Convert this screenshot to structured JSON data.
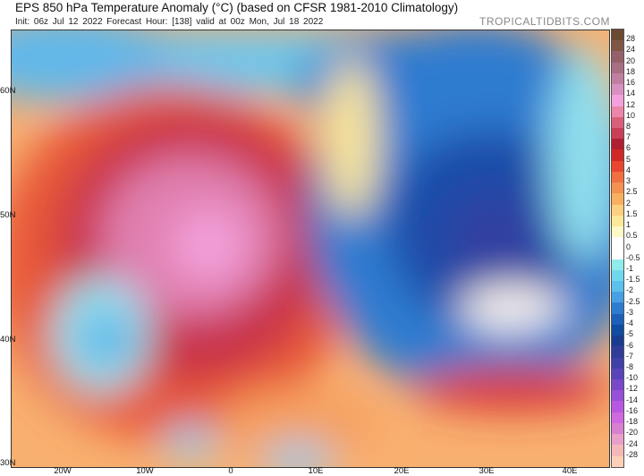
{
  "header": {
    "title": "EPS 850 hPa Temperature Anomaly (°C) (based on CFSR 1981-2010 Climatology)",
    "subtitle": "Init: 06z Jul 12 2022   Forecast Hour: [138]   valid at 00z Mon, Jul 18 2022",
    "brand": "TROPICALTIDBITS.COM"
  },
  "axes": {
    "lat_labels": [
      "60N",
      "50N",
      "40N",
      "30N"
    ],
    "lon_labels": [
      "20W",
      "10W",
      "0",
      "10E",
      "20E",
      "30E",
      "40E"
    ]
  },
  "colorbar": {
    "labels": [
      "28",
      "24",
      "20",
      "18",
      "16",
      "14",
      "12",
      "10",
      "8",
      "7",
      "6",
      "5",
      "4",
      "3",
      "2.5",
      "2",
      "1.5",
      "1",
      "0.5",
      "0",
      "-0.5",
      "-1",
      "-1.5",
      "-2",
      "-2.5",
      "-3",
      "-4",
      "-5",
      "-6",
      "-7",
      "-8",
      "-10",
      "-12",
      "-14",
      "-16",
      "-18",
      "-20",
      "-24",
      "-28"
    ],
    "colors": [
      "#6b4a32",
      "#7f5646",
      "#94606a",
      "#a86e84",
      "#c07ea0",
      "#d890c0",
      "#f4a0dc",
      "#ec86a8",
      "#d8607a",
      "#c84058",
      "#b02030",
      "#d02828",
      "#e84830",
      "#f07040",
      "#f49050",
      "#f8b060",
      "#fcd080",
      "#fce898",
      "#fcf8c8",
      "#ffffff",
      "#ffffff",
      "#90ecec",
      "#70d8ec",
      "#5cc0ec",
      "#48a0e4",
      "#2e7cd0",
      "#1c60b8",
      "#104ca0",
      "#1a3c90",
      "#303c98",
      "#4040a8",
      "#5844b8",
      "#7848c8",
      "#9850d8",
      "#b858e0",
      "#d068e0",
      "#d880d0",
      "#e8a0c8",
      "#f4b8b8",
      "#fcd0b8"
    ]
  }
}
